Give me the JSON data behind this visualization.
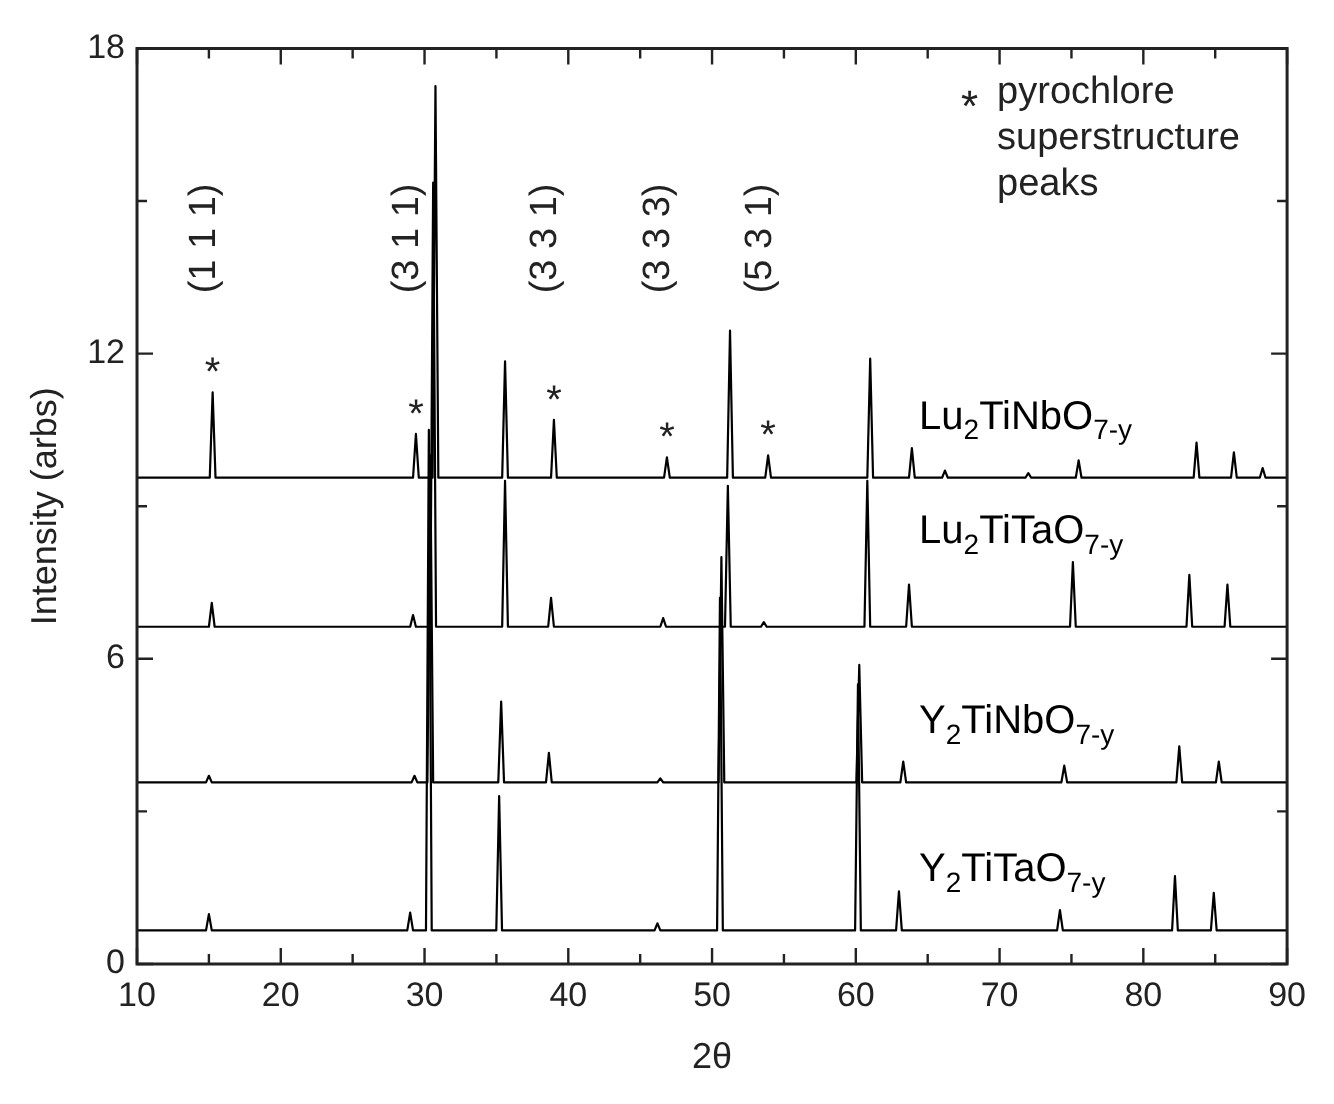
{
  "chart_data": {
    "type": "line",
    "xlabel": "2θ",
    "ylabel": "Intensity (arbs)",
    "xlim": [
      10,
      90
    ],
    "ylim": [
      0,
      18
    ],
    "xticks": [
      10,
      {
        "value": 15,
        "label": null
      },
      20,
      {
        "value": 25,
        "label": null
      },
      30,
      {
        "value": 35,
        "label": null
      },
      40,
      {
        "value": 45,
        "label": null
      },
      50,
      {
        "value": 55,
        "label": null
      },
      60,
      {
        "value": 65,
        "label": null
      },
      70,
      {
        "value": 75,
        "label": null
      },
      80,
      {
        "value": 85,
        "label": null
      },
      90
    ],
    "yticks": [
      0,
      {
        "value": 3,
        "label": null
      },
      6,
      {
        "value": 9,
        "label": null
      },
      12,
      {
        "value": 15,
        "label": null
      },
      18
    ],
    "grid": false,
    "legend": false,
    "marker": "none",
    "line_style": "solid",
    "series": [
      {
        "name": "Lu$_{2}$TiNbO$_{7-y}$",
        "color": "#000000",
        "x": [
          10,
          15.06,
          15.26,
          15.46,
          29.2,
          29.4,
          29.6,
          30.56,
          30.76,
          30.96,
          35.4,
          35.6,
          35.8,
          38.8,
          39.0,
          39.2,
          46.66,
          46.86,
          47.06,
          51.05,
          51.25,
          51.45,
          53.7,
          53.9,
          54.1,
          60.8,
          61.0,
          61.2,
          63.7,
          63.9,
          64.1,
          66.0,
          66.2,
          66.4,
          71.8,
          72.0,
          72.2,
          75.3,
          75.5,
          75.7,
          83.5,
          83.7,
          83.9,
          86.1,
          86.3,
          86.5,
          88.1,
          88.3,
          88.5,
          90
        ],
        "values": [
          9.56,
          9.56,
          11.24,
          9.56,
          9.56,
          10.42,
          9.56,
          9.56,
          17.26,
          9.56,
          9.56,
          11.85,
          9.56,
          9.56,
          10.7,
          9.56,
          9.56,
          9.96,
          9.56,
          9.56,
          12.45,
          9.56,
          9.56,
          10.0,
          9.56,
          9.56,
          11.9,
          9.56,
          9.56,
          10.14,
          9.56,
          9.56,
          9.7,
          9.56,
          9.56,
          9.65,
          9.56,
          9.56,
          9.9,
          9.56,
          9.56,
          10.25,
          9.56,
          9.56,
          10.06,
          9.56,
          9.56,
          9.75,
          9.56,
          9.56
        ]
      },
      {
        "name": "Lu$_{2}$TiTaO$_{7-y}$",
        "color": "#000000",
        "x": [
          10,
          15.0,
          15.2,
          15.4,
          29.0,
          29.2,
          29.4,
          30.4,
          30.6,
          30.8,
          35.4,
          35.6,
          35.8,
          38.6,
          38.8,
          39.0,
          46.4,
          46.6,
          46.8,
          50.9,
          51.1,
          51.3,
          53.4,
          53.6,
          53.8,
          60.6,
          60.8,
          61.0,
          63.5,
          63.7,
          63.9,
          74.9,
          75.1,
          75.3,
          83.0,
          83.2,
          83.4,
          85.65,
          85.85,
          86.05,
          90
        ],
        "values": [
          6.63,
          6.63,
          7.1,
          6.63,
          6.63,
          6.86,
          6.63,
          6.63,
          15.36,
          6.63,
          6.63,
          9.5,
          6.63,
          6.63,
          7.2,
          6.63,
          6.63,
          6.8,
          6.63,
          6.63,
          9.4,
          6.63,
          6.63,
          6.72,
          6.63,
          6.63,
          9.5,
          6.63,
          6.63,
          7.46,
          6.63,
          6.63,
          7.9,
          6.63,
          6.63,
          7.65,
          6.63,
          6.63,
          7.46,
          6.63,
          6.63
        ]
      },
      {
        "name": "Y$_{2}$TiNbO$_{7-y}$",
        "color": "#000000",
        "x": [
          10,
          14.8,
          15.0,
          15.2,
          29.1,
          29.3,
          29.5,
          30.2,
          30.4,
          30.6,
          35.13,
          35.33,
          35.53,
          38.45,
          38.65,
          38.85,
          46.2,
          46.4,
          46.6,
          50.45,
          50.65,
          50.85,
          60.04,
          60.24,
          60.44,
          63.1,
          63.3,
          63.5,
          74.3,
          74.5,
          74.7,
          82.3,
          82.5,
          82.7,
          85.05,
          85.25,
          85.45,
          90
        ],
        "values": [
          3.57,
          3.57,
          3.7,
          3.57,
          3.57,
          3.7,
          3.57,
          3.57,
          10.0,
          3.57,
          3.57,
          5.16,
          3.57,
          3.57,
          4.15,
          3.57,
          3.57,
          3.65,
          3.57,
          3.57,
          8.0,
          3.57,
          3.57,
          5.88,
          3.57,
          3.57,
          3.98,
          3.57,
          3.57,
          3.9,
          3.57,
          3.57,
          4.28,
          3.57,
          3.57,
          3.98,
          3.57,
          3.57
        ]
      },
      {
        "name": "Y$_{2}$TiTaO$_{7-y}$",
        "color": "#000000",
        "x": [
          10,
          14.8,
          15.0,
          15.2,
          28.8,
          29.0,
          29.2,
          30.1,
          30.3,
          30.5,
          34.99,
          35.19,
          35.39,
          46.0,
          46.2,
          46.4,
          50.35,
          50.55,
          50.75,
          59.95,
          60.15,
          60.35,
          62.8,
          63.0,
          63.2,
          74.0,
          74.2,
          74.4,
          82.0,
          82.2,
          82.4,
          84.7,
          84.9,
          85.1,
          90
        ],
        "values": [
          0.66,
          0.66,
          0.98,
          0.66,
          0.66,
          1.01,
          0.66,
          0.66,
          10.5,
          0.66,
          0.66,
          3.3,
          0.66,
          0.66,
          0.8,
          0.66,
          0.66,
          7.2,
          0.66,
          0.66,
          5.5,
          0.66,
          0.66,
          1.43,
          0.66,
          0.66,
          1.06,
          0.66,
          0.66,
          1.73,
          0.66,
          0.66,
          1.4,
          0.66,
          0.66
        ]
      }
    ],
    "annotations": [
      "* pyrochlore superstructure peaks",
      "(1 1 1)",
      "(3 1 1)",
      "(3 3 1)",
      "(3 3 3)",
      "(5 3 1)",
      {
        "text": "*",
        "x": 15.26,
        "y": 11.24
      },
      {
        "text": "*",
        "x": 29.4,
        "y": 10.42
      },
      {
        "text": "*",
        "x": 39.0,
        "y": 10.7
      },
      {
        "text": "*",
        "x": 46.86,
        "y": 9.96
      },
      {
        "text": "*",
        "x": 53.9,
        "y": 10.0
      }
    ]
  }
}
